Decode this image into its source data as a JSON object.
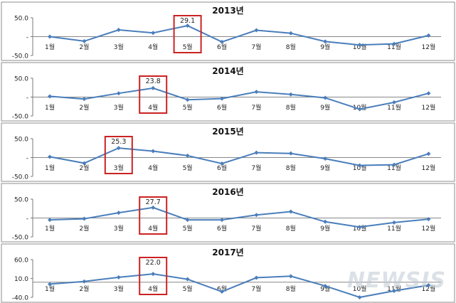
{
  "watermark": "NEWSIS",
  "colors": {
    "line": "#4a7ebb",
    "box": "#cc2222",
    "frame": "#8c8c8c",
    "text": "#222222"
  },
  "chart_data": [
    {
      "type": "line",
      "title": "2013년",
      "categories": [
        "1월",
        "2월",
        "3월",
        "4월",
        "5월",
        "6월",
        "7월",
        "8월",
        "9월",
        "10월",
        "11월",
        "12월"
      ],
      "values": [
        0,
        -12,
        18,
        10,
        29.1,
        -14,
        17,
        9,
        -13,
        -22,
        -19,
        3
      ],
      "yticks": [
        "50.0",
        "-",
        "-50.0"
      ],
      "ylim": [
        -50,
        50
      ],
      "highlight_index": 4,
      "highlight_label": "29.1"
    },
    {
      "type": "line",
      "title": "2014년",
      "categories": [
        "1월",
        "2월",
        "3월",
        "4월",
        "5월",
        "6월",
        "7월",
        "8월",
        "9월",
        "10월",
        "11월",
        "12월"
      ],
      "values": [
        2,
        -5,
        10,
        23.8,
        -7,
        -4,
        14,
        7,
        -2,
        -32,
        -14,
        10
      ],
      "yticks": [
        "50.0",
        "-",
        "-50.0"
      ],
      "ylim": [
        -50,
        50
      ],
      "highlight_index": 3,
      "highlight_label": "23.8"
    },
    {
      "type": "line",
      "title": "2015년",
      "categories": [
        "1월",
        "2월",
        "3월",
        "4월",
        "5월",
        "6월",
        "7월",
        "8월",
        "9월",
        "10월",
        "11월",
        "12월"
      ],
      "values": [
        2,
        -15,
        25.3,
        17,
        5,
        -16,
        13,
        11,
        -3,
        -21,
        -19,
        10
      ],
      "yticks": [
        "50.0",
        "-",
        "-50.0"
      ],
      "ylim": [
        -50,
        50
      ],
      "highlight_index": 2,
      "highlight_label": "25.3"
    },
    {
      "type": "line",
      "title": "2016년",
      "categories": [
        "1월",
        "2월",
        "3월",
        "4월",
        "5월",
        "6월",
        "7월",
        "8월",
        "9월",
        "10월",
        "11월",
        "12월"
      ],
      "values": [
        -5,
        -2,
        14,
        27.7,
        -5,
        -5,
        8,
        17,
        -10,
        -24,
        -12,
        -3
      ],
      "yticks": [
        "50.0",
        "-",
        "-50.0"
      ],
      "ylim": [
        -50,
        50
      ],
      "highlight_index": 3,
      "highlight_label": "27.7"
    },
    {
      "type": "line",
      "title": "2017년",
      "categories": [
        "1월",
        "2월",
        "3월",
        "4월",
        "5월",
        "6월",
        "7월",
        "8월",
        "9월",
        "10월",
        "11월",
        "12월"
      ],
      "values": [
        -5,
        2,
        13,
        22,
        8,
        -25,
        12,
        16,
        -10,
        -40,
        -23,
        -8
      ],
      "yticks": [
        "60.0",
        "10.0",
        "-40.0"
      ],
      "ylim": [
        -40,
        60
      ],
      "highlight_index": 3,
      "highlight_label": "22.0"
    }
  ]
}
